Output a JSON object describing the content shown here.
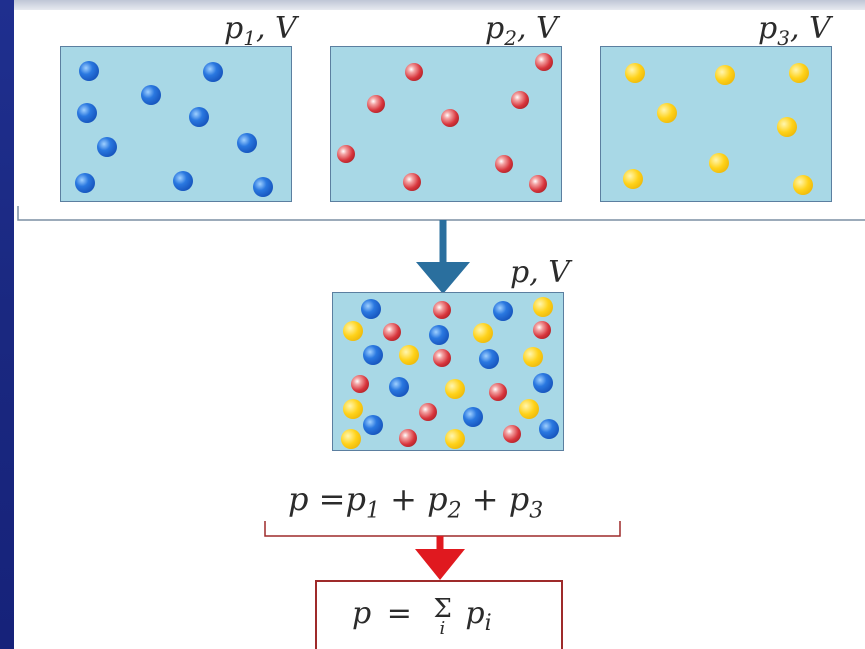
{
  "containers": [
    {
      "label": "p",
      "sub": "1",
      "suffix": ", V",
      "color": "blue"
    },
    {
      "label": "p",
      "sub": "2",
      "suffix": ", V",
      "color": "red"
    },
    {
      "label": "p",
      "sub": "3",
      "suffix": ", V",
      "color": "yellow"
    }
  ],
  "mixed": {
    "label": "p",
    "suffix": ", V"
  },
  "equation": {
    "lhs": "p",
    "equals": "=",
    "terms": [
      {
        "base": "p",
        "sub": "1"
      },
      {
        "base": "p",
        "sub": "2"
      },
      {
        "base": "p",
        "sub": "3"
      }
    ],
    "plus": "+"
  },
  "result": {
    "lhs": "p",
    "equals": "=",
    "sigma": "Σ",
    "index": "i",
    "term_base": "p",
    "term_sub": "i"
  },
  "colors": {
    "container_fill": "#a8d8e6",
    "arrow_top": "#2a6f9e",
    "arrow_bottom": "#e0191f",
    "bracket_top": "#7b8fa3",
    "bracket_bottom": "#9e2a2a"
  }
}
